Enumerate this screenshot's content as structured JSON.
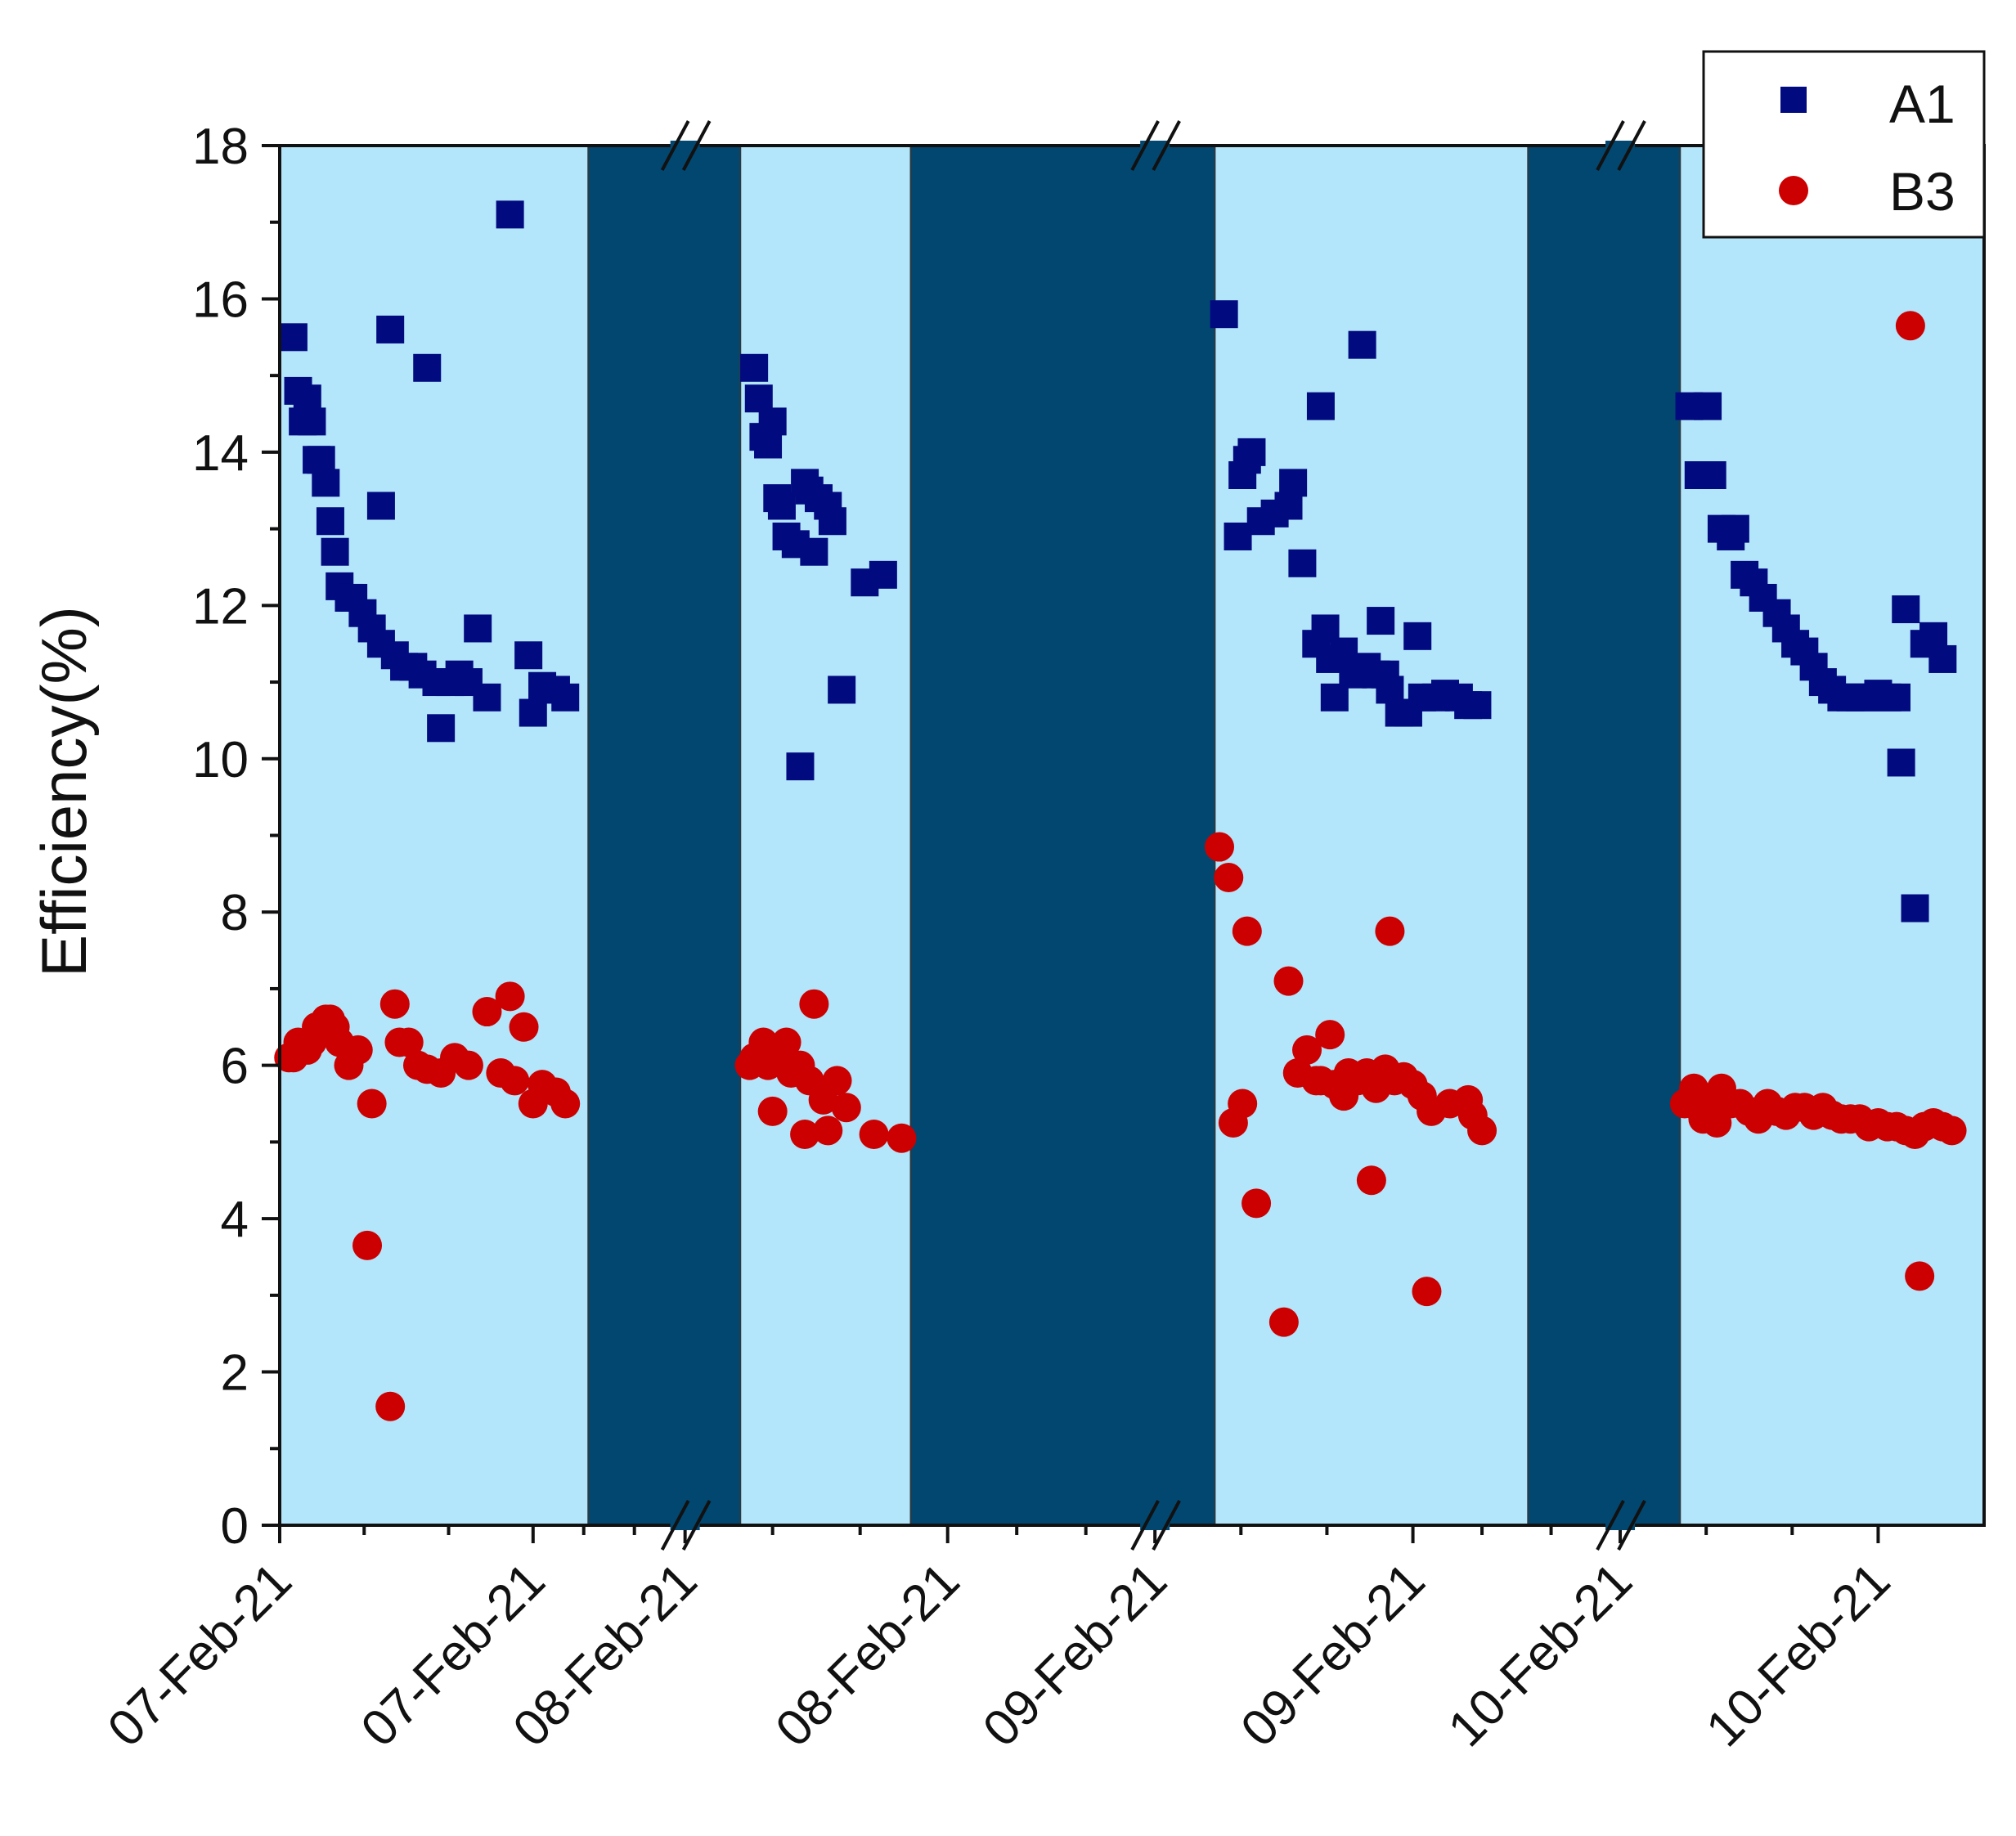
{
  "chart_data": {
    "type": "scatter",
    "title": "",
    "xlabel": "",
    "ylabel": "Efficiency(%)",
    "ylim": [
      0,
      18
    ],
    "yticks": [
      0,
      2,
      4,
      6,
      8,
      10,
      12,
      14,
      16,
      18
    ],
    "xlim": [
      0,
      37
    ],
    "xticks": [
      {
        "label": "07-Feb-21",
        "x": 0
      },
      {
        "label": "07-Feb-21",
        "x": 5.5
      },
      {
        "label": "08-Feb-21",
        "x": 8.8
      },
      {
        "label": "08-Feb-21",
        "x": 14.5
      },
      {
        "label": "09-Feb-21",
        "x": 19.0
      },
      {
        "label": "09-Feb-21",
        "x": 24.6
      },
      {
        "label": "10-Feb-21",
        "x": 29.1
      },
      {
        "label": "10-Feb-21",
        "x": 34.7
      }
    ],
    "axis_breaks": [
      8.8,
      19.0,
      29.1
    ],
    "colors": {
      "day": "#b3e5fb",
      "night": "#024770",
      "A1": "#020a80",
      "B3": "#cc0000"
    },
    "bands": [
      {
        "start": 0.0,
        "end": 6.7,
        "kind": "day"
      },
      {
        "start": 6.7,
        "end": 10.0,
        "kind": "night"
      },
      {
        "start": 10.0,
        "end": 13.7,
        "kind": "day"
      },
      {
        "start": 13.7,
        "end": 20.3,
        "kind": "night"
      },
      {
        "start": 20.3,
        "end": 27.1,
        "kind": "day"
      },
      {
        "start": 27.1,
        "end": 30.4,
        "kind": "night"
      },
      {
        "start": 30.4,
        "end": 37.0,
        "kind": "day"
      }
    ],
    "series": [
      {
        "name": "A1",
        "marker": "square",
        "points": [
          [
            0.3,
            15.5
          ],
          [
            0.4,
            14.8
          ],
          [
            0.5,
            14.4
          ],
          [
            0.6,
            14.7
          ],
          [
            0.7,
            14.4
          ],
          [
            0.8,
            13.9
          ],
          [
            0.9,
            13.9
          ],
          [
            1.0,
            13.6
          ],
          [
            1.1,
            13.1
          ],
          [
            1.2,
            12.7
          ],
          [
            1.3,
            12.25
          ],
          [
            1.5,
            12.1
          ],
          [
            1.6,
            12.1
          ],
          [
            2.2,
            13.3
          ],
          [
            1.8,
            11.9
          ],
          [
            2.0,
            11.7
          ],
          [
            2.2,
            11.5
          ],
          [
            2.4,
            15.6
          ],
          [
            2.5,
            11.35
          ],
          [
            2.7,
            11.2
          ],
          [
            2.9,
            11.2
          ],
          [
            3.1,
            11.1
          ],
          [
            3.2,
            15.1
          ],
          [
            3.4,
            11.0
          ],
          [
            3.5,
            10.4
          ],
          [
            3.7,
            11.0
          ],
          [
            3.9,
            11.1
          ],
          [
            4.1,
            11.0
          ],
          [
            4.3,
            11.7
          ],
          [
            4.5,
            10.8
          ],
          [
            5.0,
            17.1
          ],
          [
            5.4,
            11.35
          ],
          [
            5.5,
            10.6
          ],
          [
            5.7,
            10.95
          ],
          [
            6.0,
            10.9
          ],
          [
            6.2,
            10.8
          ],
          [
            10.3,
            15.1
          ],
          [
            10.4,
            14.7
          ],
          [
            10.5,
            14.2
          ],
          [
            10.6,
            14.1
          ],
          [
            10.7,
            14.4
          ],
          [
            10.8,
            13.4
          ],
          [
            10.9,
            13.3
          ],
          [
            11.0,
            12.9
          ],
          [
            11.2,
            12.8
          ],
          [
            11.3,
            9.9
          ],
          [
            11.4,
            13.6
          ],
          [
            11.5,
            13.5
          ],
          [
            11.6,
            12.7
          ],
          [
            11.7,
            13.4
          ],
          [
            11.9,
            13.3
          ],
          [
            12.0,
            13.1
          ],
          [
            12.2,
            10.9
          ],
          [
            12.7,
            12.3
          ],
          [
            13.1,
            12.4
          ],
          [
            20.5,
            15.8
          ],
          [
            20.8,
            12.9
          ],
          [
            20.9,
            13.7
          ],
          [
            21.0,
            13.9
          ],
          [
            21.1,
            14.0
          ],
          [
            21.3,
            13.1
          ],
          [
            21.6,
            13.2
          ],
          [
            21.9,
            13.3
          ],
          [
            22.0,
            13.6
          ],
          [
            22.2,
            12.55
          ],
          [
            22.5,
            11.5
          ],
          [
            22.6,
            14.6
          ],
          [
            22.7,
            11.7
          ],
          [
            22.8,
            11.3
          ],
          [
            22.9,
            10.8
          ],
          [
            23.1,
            11.4
          ],
          [
            23.3,
            11.1
          ],
          [
            23.5,
            15.4
          ],
          [
            23.6,
            11.2
          ],
          [
            23.8,
            11.1
          ],
          [
            23.9,
            11.8
          ],
          [
            24.0,
            11.1
          ],
          [
            24.1,
            10.9
          ],
          [
            24.3,
            10.6
          ],
          [
            24.5,
            10.6
          ],
          [
            24.7,
            11.6
          ],
          [
            24.8,
            10.8
          ],
          [
            25.1,
            10.8
          ],
          [
            25.3,
            10.85
          ],
          [
            25.6,
            10.8
          ],
          [
            25.8,
            10.7
          ],
          [
            26.0,
            10.7
          ],
          [
            30.6,
            14.6
          ],
          [
            30.8,
            13.7
          ],
          [
            31.0,
            14.6
          ],
          [
            31.1,
            13.7
          ],
          [
            31.3,
            13.0
          ],
          [
            31.5,
            12.9
          ],
          [
            31.6,
            13.0
          ],
          [
            31.8,
            12.4
          ],
          [
            32.0,
            12.3
          ],
          [
            32.2,
            12.1
          ],
          [
            32.5,
            11.9
          ],
          [
            32.7,
            11.7
          ],
          [
            32.9,
            11.5
          ],
          [
            33.1,
            11.4
          ],
          [
            33.3,
            11.2
          ],
          [
            33.5,
            11.0
          ],
          [
            33.7,
            10.9
          ],
          [
            33.9,
            10.8
          ],
          [
            34.1,
            10.8
          ],
          [
            34.3,
            10.8
          ],
          [
            34.5,
            10.8
          ],
          [
            34.7,
            10.85
          ],
          [
            34.9,
            10.8
          ],
          [
            35.1,
            10.8
          ],
          [
            35.2,
            9.95
          ],
          [
            35.3,
            11.95
          ],
          [
            35.5,
            8.05
          ],
          [
            35.7,
            11.5
          ],
          [
            35.9,
            11.6
          ],
          [
            36.1,
            11.3
          ]
        ]
      },
      {
        "name": "B3",
        "marker": "circle",
        "points": [
          [
            0.2,
            6.1
          ],
          [
            0.3,
            6.1
          ],
          [
            0.4,
            6.3
          ],
          [
            0.5,
            6.2
          ],
          [
            0.6,
            6.2
          ],
          [
            0.7,
            6.3
          ],
          [
            0.8,
            6.5
          ],
          [
            0.9,
            6.5
          ],
          [
            1.0,
            6.6
          ],
          [
            1.1,
            6.6
          ],
          [
            1.2,
            6.5
          ],
          [
            1.3,
            6.3
          ],
          [
            1.5,
            6.0
          ],
          [
            1.7,
            6.2
          ],
          [
            2.0,
            5.5
          ],
          [
            1.9,
            3.65
          ],
          [
            2.4,
            1.55
          ],
          [
            2.5,
            6.8
          ],
          [
            2.6,
            6.3
          ],
          [
            2.8,
            6.3
          ],
          [
            3.0,
            6.0
          ],
          [
            3.2,
            5.95
          ],
          [
            3.5,
            5.9
          ],
          [
            3.8,
            6.1
          ],
          [
            4.1,
            6.0
          ],
          [
            4.5,
            6.7
          ],
          [
            4.8,
            5.9
          ],
          [
            5.0,
            6.9
          ],
          [
            5.1,
            5.8
          ],
          [
            5.3,
            6.5
          ],
          [
            5.5,
            5.5
          ],
          [
            5.7,
            5.75
          ],
          [
            6.0,
            5.65
          ],
          [
            6.2,
            5.5
          ],
          [
            10.2,
            6.0
          ],
          [
            10.3,
            6.1
          ],
          [
            10.5,
            6.3
          ],
          [
            10.6,
            6.0
          ],
          [
            10.7,
            5.4
          ],
          [
            10.9,
            6.1
          ],
          [
            11.0,
            6.3
          ],
          [
            11.1,
            5.9
          ],
          [
            11.2,
            6.0
          ],
          [
            11.3,
            6.0
          ],
          [
            11.4,
            5.1
          ],
          [
            11.5,
            5.8
          ],
          [
            11.6,
            6.8
          ],
          [
            11.8,
            5.55
          ],
          [
            11.9,
            5.15
          ],
          [
            12.1,
            5.8
          ],
          [
            12.3,
            5.45
          ],
          [
            12.9,
            5.1
          ],
          [
            13.5,
            5.05
          ],
          [
            20.4,
            8.85
          ],
          [
            20.6,
            8.45
          ],
          [
            20.7,
            5.25
          ],
          [
            20.9,
            5.5
          ],
          [
            21.0,
            7.75
          ],
          [
            21.2,
            4.2
          ],
          [
            21.9,
            7.1
          ],
          [
            21.8,
            2.65
          ],
          [
            22.1,
            5.9
          ],
          [
            22.3,
            6.2
          ],
          [
            22.5,
            5.8
          ],
          [
            22.6,
            5.8
          ],
          [
            22.8,
            6.4
          ],
          [
            22.9,
            5.75
          ],
          [
            23.1,
            5.6
          ],
          [
            23.2,
            5.9
          ],
          [
            23.4,
            5.8
          ],
          [
            23.6,
            5.9
          ],
          [
            23.8,
            5.7
          ],
          [
            23.7,
            4.5
          ],
          [
            24.0,
            5.95
          ],
          [
            24.2,
            5.8
          ],
          [
            24.4,
            5.85
          ],
          [
            24.1,
            7.75
          ],
          [
            24.6,
            5.75
          ],
          [
            24.8,
            5.6
          ],
          [
            24.9,
            3.05
          ],
          [
            25.0,
            5.4
          ],
          [
            25.4,
            5.5
          ],
          [
            25.8,
            5.55
          ],
          [
            25.9,
            5.35
          ],
          [
            26.1,
            5.15
          ],
          [
            30.5,
            5.5
          ],
          [
            30.7,
            5.7
          ],
          [
            30.8,
            5.45
          ],
          [
            30.9,
            5.3
          ],
          [
            31.1,
            5.5
          ],
          [
            31.2,
            5.25
          ],
          [
            31.3,
            5.7
          ],
          [
            31.5,
            5.5
          ],
          [
            31.7,
            5.5
          ],
          [
            31.9,
            5.4
          ],
          [
            32.1,
            5.3
          ],
          [
            32.3,
            5.5
          ],
          [
            32.5,
            5.4
          ],
          [
            32.7,
            5.35
          ],
          [
            32.9,
            5.45
          ],
          [
            33.1,
            5.45
          ],
          [
            33.3,
            5.35
          ],
          [
            33.5,
            5.45
          ],
          [
            33.7,
            5.35
          ],
          [
            33.9,
            5.3
          ],
          [
            34.1,
            5.3
          ],
          [
            34.3,
            5.3
          ],
          [
            34.5,
            5.2
          ],
          [
            34.7,
            5.25
          ],
          [
            34.9,
            5.2
          ],
          [
            35.1,
            5.2
          ],
          [
            35.3,
            5.15
          ],
          [
            35.5,
            5.1
          ],
          [
            35.4,
            15.65
          ],
          [
            35.6,
            3.25
          ],
          [
            35.7,
            5.2
          ],
          [
            35.9,
            5.25
          ],
          [
            36.1,
            5.2
          ],
          [
            36.3,
            5.15
          ]
        ]
      }
    ],
    "legend": {
      "position": "top-right",
      "entries": [
        "A1",
        "B3"
      ]
    }
  }
}
